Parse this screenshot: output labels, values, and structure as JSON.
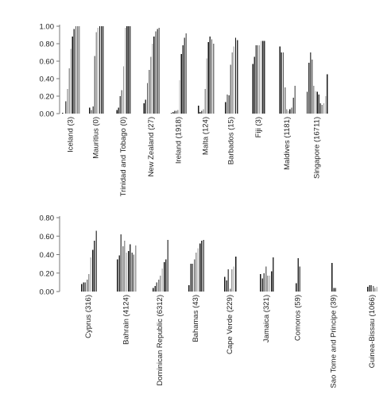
{
  "chart_data": [
    {
      "type": "bar",
      "ylim": [
        0,
        1.0
      ],
      "yticks": [
        "0.00",
        "0.20",
        "0.40",
        "0.60",
        "0.80",
        "1.00"
      ],
      "categories": [
        {
          "label": "Iceland (3)",
          "values": [
            0.01,
            0.0,
            0.14,
            0.28,
            0.52,
            0.74,
            0.88,
            0.97,
            1.0,
            1.0,
            1.0
          ]
        },
        {
          "label": "Mauritius (0)",
          "values": [
            0.07,
            0.04,
            0.08,
            0.66,
            0.93,
            0.98,
            1.0,
            1.0,
            1.0
          ]
        },
        {
          "label": "Trinidad and Tobago (0)",
          "values": [
            0.04,
            0.07,
            0.2,
            0.27,
            0.54,
            0.98,
            1.0,
            1.0,
            1.0
          ]
        },
        {
          "label": "New Zealand (27)",
          "values": [
            0.12,
            0.16,
            0.35,
            0.5,
            0.65,
            0.8,
            0.88,
            0.94,
            0.97,
            0.98
          ]
        },
        {
          "label": "Ireland (1918)",
          "values": [
            0.01,
            0.02,
            0.03,
            0.03,
            0.04,
            0.38,
            0.68,
            0.78,
            0.87,
            0.92
          ]
        },
        {
          "label": "Malta (124)",
          "values": [
            0.09,
            0.02,
            0.03,
            0.05,
            0.28,
            0.63,
            0.82,
            0.88,
            0.85,
            0.8
          ]
        },
        {
          "label": "Barbados (15)",
          "values": [
            0.13,
            0.22,
            0.21,
            0.56,
            0.7,
            0.77,
            0.87,
            0.84
          ]
        },
        {
          "label": "Fiji (3)",
          "values": [
            0.57,
            0.65,
            0.78,
            0.78,
            0.78,
            0.83,
            0.83,
            0.83
          ]
        },
        {
          "label": "Maldives (1181)",
          "values": [
            0.77,
            0.7,
            0.7,
            0.3,
            0.05,
            0.03,
            0.05,
            0.07,
            0.18,
            0.32
          ]
        },
        {
          "label": "Singapore (16711)",
          "values": [
            0.25,
            0.58,
            0.7,
            0.62,
            0.32,
            0.26,
            0.25,
            0.22,
            0.12,
            0.1,
            0.12,
            0.2,
            0.45
          ]
        }
      ]
    },
    {
      "type": "bar",
      "ylim": [
        0,
        0.8
      ],
      "yticks": [
        "0.00",
        "0.20",
        "0.40",
        "0.60",
        "0.80"
      ],
      "categories": [
        {
          "label": "Cyprus (316)",
          "values": [
            0.08,
            0.1,
            0.1,
            0.13,
            0.19,
            0.37,
            0.45,
            0.55,
            0.66
          ]
        },
        {
          "label": "Bahrain (4124)",
          "values": [
            0.35,
            0.39,
            0.62,
            0.49,
            0.55,
            0.42,
            0.44,
            0.51,
            0.42,
            0.4,
            0.5
          ]
        },
        {
          "label": "Dominican Republic (6312)",
          "values": [
            0.04,
            0.06,
            0.1,
            0.13,
            0.17,
            0.25,
            0.32,
            0.35,
            0.56
          ]
        },
        {
          "label": "Bahamas (43)",
          "values": [
            0.07,
            0.3,
            0.3,
            0.35,
            0.42,
            0.47,
            0.52,
            0.55,
            0.56
          ]
        },
        {
          "label": "Cape Verde (229)",
          "values": [
            0.16,
            0.12,
            0.24,
            0.03,
            0.24,
            0.27,
            0.38
          ]
        },
        {
          "label": "Jamaica (321)",
          "values": [
            0.19,
            0.14,
            0.2,
            0.27,
            0.17,
            0.17,
            0.22,
            0.37
          ]
        },
        {
          "label": "Comoros (59)",
          "values": [
            0.09,
            0.36,
            0.27
          ]
        },
        {
          "label": "Sao Tome and Principe (39)",
          "values": [
            0.31,
            0.04,
            0.04
          ]
        },
        {
          "label": "Guinea-Bissau (1066)",
          "values": [
            0.05,
            0.07,
            0.07,
            0.06,
            0.04,
            0.05
          ]
        }
      ]
    }
  ]
}
